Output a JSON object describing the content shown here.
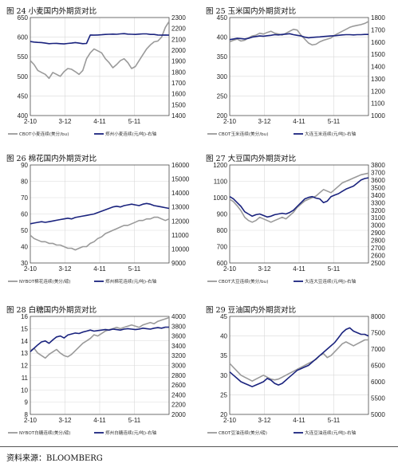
{
  "colors": {
    "left_series": "#9a9a9a",
    "right_series": "#1a237e"
  },
  "footer": {
    "source": "资料来源：BLOOMBERG"
  },
  "chart_data": [
    {
      "type": "line",
      "title": "图 24  小麦国内外期货对比",
      "xticks": [
        "2-10",
        "3-12",
        "4-11",
        "5-11"
      ],
      "left_axis": {
        "min": 400,
        "max": 650,
        "step": 50
      },
      "right_axis": {
        "min": 1400,
        "max": 2300,
        "step": 100
      },
      "grid": true,
      "legend_position": "bottom",
      "series": [
        {
          "name": "CBOT小麦连续(美分/bu)",
          "axis": "left",
          "values": [
            540,
            530,
            515,
            510,
            505,
            495,
            510,
            505,
            500,
            512,
            520,
            518,
            512,
            505,
            515,
            545,
            560,
            570,
            565,
            560,
            545,
            535,
            522,
            530,
            540,
            545,
            535,
            520,
            525,
            540,
            555,
            570,
            580,
            588,
            590,
            600,
            625,
            640
          ]
        },
        {
          "name": "郑州小麦连续(元/吨)-右轴",
          "axis": "right",
          "values": [
            2080,
            2075,
            2072,
            2070,
            2065,
            2060,
            2062,
            2063,
            2060,
            2058,
            2062,
            2065,
            2070,
            2065,
            2060,
            2062,
            2140,
            2138,
            2140,
            2142,
            2145,
            2146,
            2148,
            2146,
            2150,
            2152,
            2148,
            2146,
            2145,
            2148,
            2150,
            2150,
            2145,
            2145,
            2140,
            2138,
            2140,
            2138
          ]
        }
      ]
    },
    {
      "type": "line",
      "title": "图 25  玉米国内外期货对比",
      "xticks": [
        "2-10",
        "3-12",
        "4-11",
        "5-11"
      ],
      "left_axis": {
        "min": 200,
        "max": 450,
        "step": 50
      },
      "right_axis": {
        "min": 1000,
        "max": 1800,
        "step": 100
      },
      "grid": true,
      "legend_position": "bottom",
      "series": [
        {
          "name": "CBOT玉米连续(美分/bu)",
          "axis": "left",
          "values": [
            388,
            392,
            395,
            390,
            392,
            398,
            403,
            405,
            410,
            408,
            412,
            415,
            410,
            408,
            405,
            410,
            415,
            420,
            418,
            405,
            395,
            385,
            380,
            382,
            388,
            392,
            395,
            398,
            405,
            410,
            415,
            420,
            425,
            428,
            430,
            432,
            435,
            440
          ]
        },
        {
          "name": "大连玉米连续(元/吨)-右轴",
          "axis": "right",
          "values": [
            1620,
            1625,
            1630,
            1628,
            1625,
            1630,
            1640,
            1645,
            1650,
            1648,
            1652,
            1655,
            1660,
            1658,
            1662,
            1665,
            1668,
            1660,
            1655,
            1650,
            1640,
            1635,
            1638,
            1640,
            1642,
            1645,
            1648,
            1650,
            1652,
            1655,
            1658,
            1660,
            1660,
            1658,
            1660,
            1660,
            1662,
            1662
          ]
        }
      ]
    },
    {
      "type": "line",
      "title": "图 26  棉花国内外期货对比",
      "xticks": [
        "2-10",
        "3-12",
        "4-11",
        "5-11"
      ],
      "left_axis": {
        "min": 30,
        "max": 90,
        "step": 10
      },
      "right_axis": {
        "min": 9000,
        "max": 16000,
        "step": 1000
      },
      "grid": true,
      "legend_position": "bottom",
      "series": [
        {
          "name": "NYBOT棉花连续(美分/磅)",
          "axis": "left",
          "values": [
            47,
            45,
            44,
            43,
            43,
            42,
            42,
            41,
            41,
            40,
            39,
            39,
            38,
            39,
            40,
            40,
            42,
            43,
            45,
            46,
            48,
            49,
            50,
            51,
            52,
            53,
            53,
            54,
            55,
            56,
            56,
            57,
            57,
            58,
            58,
            57,
            56,
            57
          ]
        },
        {
          "name": "郑州棉花连续(元/吨)-右轴",
          "axis": "right",
          "values": [
            11800,
            11850,
            11900,
            11950,
            11900,
            11950,
            12000,
            12050,
            12100,
            12150,
            12200,
            12150,
            12250,
            12300,
            12350,
            12400,
            12450,
            12500,
            12600,
            12700,
            12800,
            12900,
            13000,
            13050,
            13000,
            13100,
            13150,
            13200,
            13150,
            13100,
            13200,
            13250,
            13200,
            13100,
            13050,
            13000,
            12950,
            12900
          ]
        }
      ]
    },
    {
      "type": "line",
      "title": "图 27  大豆国内外期货对比",
      "xticks": [
        "2-10",
        "3-12",
        "4-11",
        "5-11"
      ],
      "left_axis": {
        "min": 600,
        "max": 1200,
        "step": 100
      },
      "right_axis": {
        "min": 2500,
        "max": 3800,
        "step": 100
      },
      "grid": true,
      "legend_position": "bottom",
      "series": [
        {
          "name": "CBOT大豆连续(美分/bu)",
          "axis": "left",
          "values": [
            990,
            975,
            950,
            920,
            880,
            860,
            850,
            860,
            880,
            870,
            860,
            850,
            860,
            870,
            880,
            870,
            890,
            910,
            940,
            960,
            980,
            990,
            1000,
            1010,
            1030,
            1050,
            1040,
            1030,
            1050,
            1070,
            1090,
            1100,
            1110,
            1120,
            1130,
            1140,
            1145,
            1150
          ]
        },
        {
          "name": "大连大豆连续(元/吨)-右轴",
          "axis": "right",
          "values": [
            3380,
            3350,
            3300,
            3250,
            3180,
            3150,
            3120,
            3140,
            3150,
            3130,
            3110,
            3120,
            3140,
            3150,
            3160,
            3150,
            3170,
            3200,
            3250,
            3300,
            3350,
            3370,
            3380,
            3360,
            3350,
            3300,
            3320,
            3380,
            3400,
            3420,
            3450,
            3480,
            3500,
            3520,
            3560,
            3600,
            3620,
            3630
          ]
        }
      ]
    },
    {
      "type": "line",
      "title": "图 28  白糖国内外期货对比",
      "xticks": [
        "2-10",
        "3-12",
        "4-11",
        "5-11"
      ],
      "left_axis": {
        "min": 8,
        "max": 16,
        "step": 1
      },
      "right_axis": {
        "min": 2000,
        "max": 4000,
        "step": 200
      },
      "grid": true,
      "legend_position": "bottom",
      "series": [
        {
          "name": "NYBOT白糖连续(美分/磅)",
          "axis": "left",
          "values": [
            13.2,
            13.4,
            13.0,
            12.8,
            12.6,
            12.9,
            13.1,
            13.3,
            13.0,
            12.8,
            12.7,
            12.9,
            13.2,
            13.5,
            13.8,
            14.0,
            14.2,
            14.5,
            14.4,
            14.6,
            14.8,
            14.9,
            15.0,
            15.1,
            15.0,
            15.1,
            15.2,
            15.3,
            15.2,
            15.1,
            15.3,
            15.4,
            15.5,
            15.4,
            15.6,
            15.7,
            15.8,
            15.9
          ]
        },
        {
          "name": "郑州白糖连续(元/吨)-右轴",
          "axis": "right",
          "values": [
            3280,
            3350,
            3420,
            3480,
            3500,
            3450,
            3520,
            3580,
            3600,
            3560,
            3620,
            3640,
            3660,
            3650,
            3680,
            3700,
            3720,
            3700,
            3710,
            3720,
            3730,
            3720,
            3740,
            3730,
            3720,
            3740,
            3750,
            3740,
            3730,
            3740,
            3760,
            3750,
            3740,
            3760,
            3770,
            3760,
            3780,
            3780
          ]
        }
      ]
    },
    {
      "type": "line",
      "title": "图 29  豆油国内外期货对比",
      "xticks": [
        "2-10",
        "3-12",
        "4-11",
        "5-11"
      ],
      "left_axis": {
        "min": 20,
        "max": 45,
        "step": 5
      },
      "right_axis": {
        "min": 5000,
        "max": 8000,
        "step": 500
      },
      "grid": true,
      "legend_position": "bottom",
      "series": [
        {
          "name": "CBOT豆油连续(美分/磅)",
          "axis": "left",
          "values": [
            33,
            32,
            31,
            30,
            29.5,
            29,
            28.5,
            29,
            29.5,
            30,
            29.5,
            29,
            28.8,
            29,
            29.5,
            30,
            30.5,
            31,
            31.5,
            32,
            32.5,
            33,
            33.5,
            34,
            35,
            35.5,
            34.5,
            35,
            36,
            37,
            38,
            38.5,
            38,
            37.5,
            38,
            38.5,
            39,
            39
          ]
        },
        {
          "name": "大连豆油连续(元/吨)-右轴",
          "axis": "right",
          "values": [
            6300,
            6200,
            6100,
            6000,
            5950,
            5900,
            5850,
            5900,
            5950,
            6000,
            6100,
            6050,
            5950,
            5900,
            5950,
            6050,
            6150,
            6250,
            6350,
            6400,
            6450,
            6500,
            6600,
            6700,
            6800,
            6900,
            7000,
            7100,
            7200,
            7350,
            7500,
            7600,
            7650,
            7550,
            7500,
            7450,
            7450,
            7400
          ]
        }
      ]
    }
  ]
}
